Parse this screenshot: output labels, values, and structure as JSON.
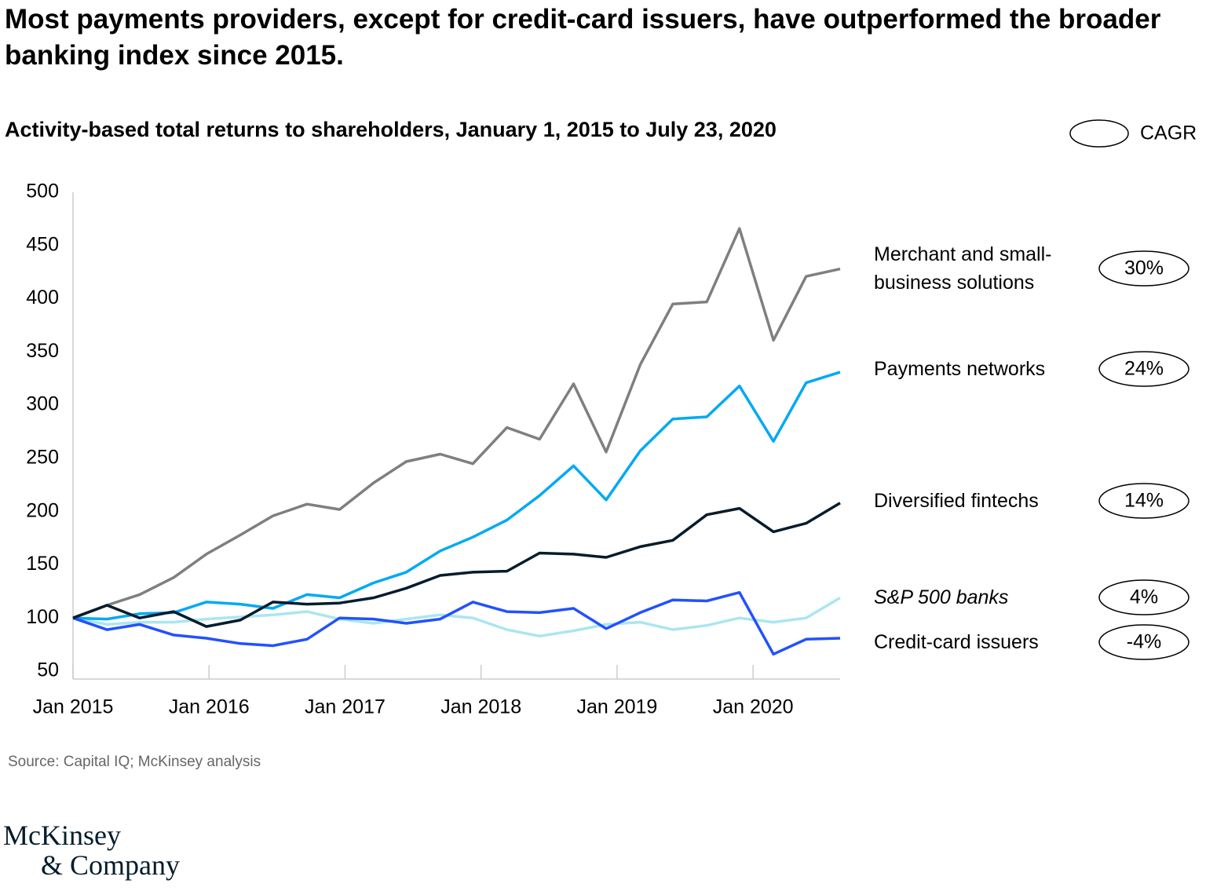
{
  "chart_data": {
    "type": "line",
    "title": "Most payments providers, except for credit-card issuers, have outperformed the broader banking index since 2015.",
    "subtitle": "Activity-based total returns to shareholders, January 1, 2015  to July 23, 2020",
    "legend_title": "CAGR",
    "source": "Source: Capital IQ; McKinsey analysis",
    "x": [
      2015.0,
      2015.25,
      2015.49,
      2015.74,
      2015.98,
      2016.23,
      2016.47,
      2016.72,
      2016.96,
      2017.21,
      2017.45,
      2017.7,
      2017.94,
      2018.19,
      2018.43,
      2018.68,
      2018.92,
      2019.17,
      2019.41,
      2019.66,
      2019.9,
      2020.15,
      2020.39,
      2020.64
    ],
    "xlim": [
      2015,
      2020.64
    ],
    "xticks": [
      {
        "value": 2015,
        "label": "Jan 2015"
      },
      {
        "value": 2016,
        "label": "Jan 2016"
      },
      {
        "value": 2017,
        "label": "Jan 2017"
      },
      {
        "value": 2018,
        "label": "Jan 2018"
      },
      {
        "value": 2019,
        "label": "Jan 2019"
      },
      {
        "value": 2020,
        "label": "Jan 2020"
      }
    ],
    "ylim": [
      50,
      500
    ],
    "yticks": [
      50,
      100,
      150,
      200,
      250,
      300,
      350,
      400,
      450,
      500
    ],
    "grid": false,
    "series": [
      {
        "name": "Merchant and small-business solutions",
        "cagr": "30%",
        "color": "#7f7f7f",
        "italic": false,
        "values": [
          100,
          112,
          122,
          138,
          160,
          178,
          196,
          207,
          202,
          227,
          247,
          254,
          245,
          279,
          268,
          320,
          256,
          338,
          395,
          397,
          466,
          361,
          421,
          428
        ]
      },
      {
        "name": "Payments networks",
        "cagr": "24%",
        "color": "#00a9f4",
        "italic": false,
        "values": [
          100,
          99,
          104,
          105,
          115,
          113,
          109,
          122,
          119,
          133,
          143,
          163,
          176,
          192,
          215,
          243,
          211,
          257,
          287,
          289,
          318,
          266,
          321,
          331
        ]
      },
      {
        "name": "Diversified fintechs",
        "cagr": "14%",
        "color": "#051c2c",
        "italic": false,
        "values": [
          100,
          112,
          100,
          106,
          92,
          98,
          115,
          113,
          114,
          119,
          128,
          140,
          143,
          144,
          161,
          160,
          157,
          167,
          173,
          197,
          203,
          181,
          189,
          208
        ]
      },
      {
        "name": "S&P 500 banks",
        "cagr": "4%",
        "color": "#aae6f0",
        "italic": true,
        "values": [
          100,
          94,
          96,
          96,
          99,
          101,
          103,
          106,
          99,
          95,
          99,
          103,
          100,
          89,
          83,
          88,
          94,
          96,
          89,
          93,
          100,
          96,
          100,
          119
        ]
      },
      {
        "name": "Credit-card issuers",
        "cagr": "-4%",
        "color": "#2251ff",
        "italic": false,
        "values": [
          100,
          89,
          94,
          84,
          81,
          76,
          74,
          80,
          100,
          99,
          95,
          99,
          115,
          106,
          105,
          109,
          90,
          105,
          117,
          116,
          124,
          66,
          80,
          81
        ]
      }
    ]
  },
  "logo": [
    "McKinsey",
    "& Company"
  ]
}
